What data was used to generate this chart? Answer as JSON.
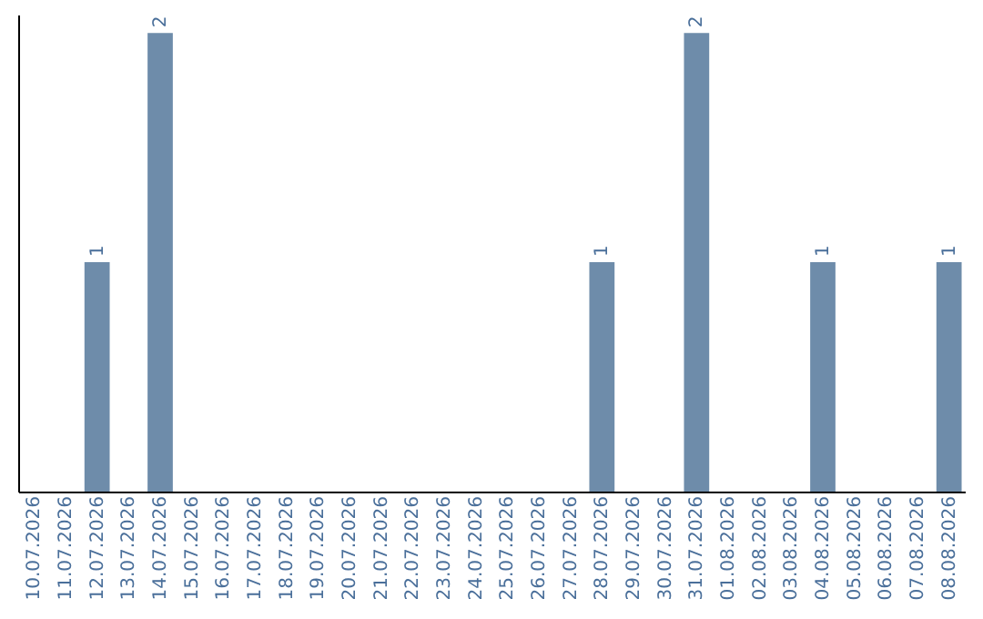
{
  "chart_data": {
    "type": "bar",
    "categories": [
      "10.07.2026",
      "11.07.2026",
      "12.07.2026",
      "13.07.2026",
      "14.07.2026",
      "15.07.2026",
      "16.07.2026",
      "17.07.2026",
      "18.07.2026",
      "19.07.2026",
      "20.07.2026",
      "21.07.2026",
      "22.07.2026",
      "23.07.2026",
      "24.07.2026",
      "25.07.2026",
      "26.07.2026",
      "27.07.2026",
      "28.07.2026",
      "29.07.2026",
      "30.07.2026",
      "31.07.2026",
      "01.08.2026",
      "02.08.2026",
      "03.08.2026",
      "04.08.2026",
      "05.08.2026",
      "06.08.2026",
      "07.08.2026",
      "08.08.2026"
    ],
    "values": [
      0,
      0,
      1,
      0,
      2,
      0,
      0,
      0,
      0,
      0,
      0,
      0,
      0,
      0,
      0,
      0,
      0,
      0,
      1,
      0,
      0,
      2,
      0,
      0,
      0,
      1,
      0,
      0,
      0,
      1
    ],
    "value_labels": [
      null,
      null,
      "1",
      null,
      "2",
      null,
      null,
      null,
      null,
      null,
      null,
      null,
      null,
      null,
      null,
      null,
      null,
      null,
      "1",
      null,
      null,
      "2",
      null,
      null,
      null,
      "1",
      null,
      null,
      null,
      "1"
    ],
    "color": "#6e8caa",
    "grid": false,
    "tick_labels": "x"
  }
}
